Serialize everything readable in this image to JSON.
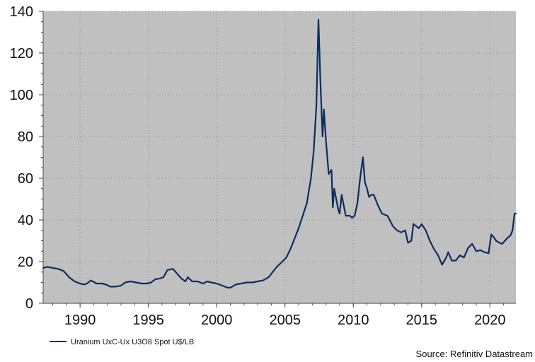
{
  "colors": {
    "plot_background": "#c0c0c0",
    "series_line": "#0d2d5e",
    "grid": "#8c8c8c",
    "axis": "#444444"
  },
  "chart_data": {
    "type": "line",
    "title": "",
    "xlabel": "",
    "ylabel": "",
    "xlim": [
      1987.3,
      2021.9
    ],
    "ylim": [
      0,
      140
    ],
    "x_ticks": [
      1990,
      1995,
      2000,
      2005,
      2010,
      2015,
      2020
    ],
    "y_ticks": [
      0,
      20,
      40,
      60,
      80,
      100,
      120,
      140
    ],
    "grid": true,
    "legend_position": "bottom-left",
    "source": "Source: Refinitiv Datastream",
    "series": [
      {
        "name": "Uranium UxC-Ux U3O8 Spot U$/LB",
        "x": [
          1987.3,
          1987.6,
          1988.0,
          1988.4,
          1988.8,
          1989.2,
          1989.6,
          1990.0,
          1990.3,
          1990.5,
          1990.8,
          1991.2,
          1991.6,
          1991.9,
          1992.2,
          1992.6,
          1993.0,
          1993.3,
          1993.7,
          1994.1,
          1994.5,
          1994.9,
          1995.2,
          1995.5,
          1995.9,
          1996.1,
          1996.4,
          1996.8,
          1997.0,
          1997.4,
          1997.7,
          1997.9,
          1998.2,
          1998.6,
          1999.0,
          1999.3,
          1999.6,
          2000.0,
          2000.4,
          2000.8,
          2001.0,
          2001.4,
          2001.8,
          2002.2,
          2002.6,
          2003.0,
          2003.4,
          2003.8,
          2004.1,
          2004.4,
          2004.8,
          2005.1,
          2005.4,
          2005.7,
          2006.0,
          2006.3,
          2006.6,
          2006.9,
          2007.1,
          2007.3,
          2007.45,
          2007.6,
          2007.75,
          2007.85,
          2008.0,
          2008.2,
          2008.4,
          2008.5,
          2008.6,
          2008.75,
          2008.9,
          2009.0,
          2009.15,
          2009.3,
          2009.45,
          2009.6,
          2009.75,
          2009.9,
          2010.1,
          2010.3,
          2010.5,
          2010.7,
          2010.85,
          2011.0,
          2011.15,
          2011.3,
          2011.5,
          2011.8,
          2012.1,
          2012.5,
          2012.9,
          2013.2,
          2013.5,
          2013.8,
          2014.0,
          2014.25,
          2014.4,
          2014.6,
          2014.8,
          2015.0,
          2015.3,
          2015.6,
          2015.9,
          2016.2,
          2016.5,
          2016.8,
          2016.95,
          2017.2,
          2017.5,
          2017.8,
          2018.1,
          2018.4,
          2018.7,
          2019.0,
          2019.3,
          2019.6,
          2019.9,
          2020.1,
          2020.25,
          2020.45,
          2020.7,
          2020.9,
          2021.1,
          2021.3,
          2021.5,
          2021.65,
          2021.8,
          2021.9
        ],
        "values": [
          17,
          17.5,
          17,
          16.5,
          15.5,
          12.5,
          10.5,
          9.5,
          9,
          9.5,
          11,
          9.5,
          9.5,
          9,
          8,
          8,
          8.5,
          10,
          10.5,
          10,
          9.5,
          9.5,
          10,
          11.5,
          12,
          12.5,
          16,
          16.5,
          15,
          12,
          10.5,
          12.5,
          10.5,
          10.5,
          9.5,
          10.5,
          10,
          9.5,
          8.5,
          7.5,
          7.5,
          9,
          9.5,
          10,
          10,
          10.5,
          11,
          12.5,
          15,
          17.5,
          20,
          22,
          26,
          31,
          36,
          42,
          48,
          60,
          73,
          95,
          136,
          105,
          80,
          93,
          78,
          62,
          64,
          46,
          55,
          50,
          45,
          43,
          52,
          47,
          42,
          42,
          42,
          41,
          42,
          48,
          60,
          70,
          58,
          55,
          51,
          52,
          52,
          47,
          43,
          42,
          37,
          35,
          34,
          35,
          29,
          30,
          38,
          37,
          36,
          38,
          35,
          30,
          26,
          23,
          18.5,
          22,
          24.5,
          20.5,
          20.5,
          23,
          22,
          26.5,
          28.5,
          25,
          25.5,
          24.5,
          24,
          33,
          32,
          30,
          29,
          28.5,
          30,
          31.5,
          32.5,
          35,
          43,
          43
        ]
      }
    ]
  }
}
